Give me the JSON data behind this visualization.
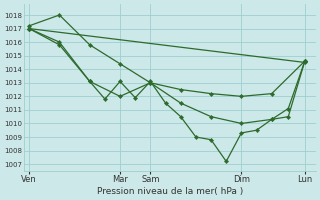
{
  "title": "",
  "xlabel": "Pression niveau de la mer( hPa )",
  "ylabel": "",
  "bg_color": "#cce8e8",
  "line_color": "#2d6b2d",
  "yticks": [
    1007,
    1008,
    1009,
    1010,
    1011,
    1012,
    1013,
    1014,
    1015,
    1016,
    1017,
    1018
  ],
  "ylim": [
    1006.5,
    1018.8
  ],
  "xlim": [
    -0.2,
    10.4
  ],
  "xtick_positions": [
    0,
    3.3,
    4.4,
    7.7,
    10.0
  ],
  "xtick_labels": [
    "Ven",
    "Mar",
    "Sam",
    "Dim",
    "Lun"
  ],
  "vline_positions": [
    0,
    3.3,
    4.4,
    7.7,
    10.0
  ],
  "series": [
    {
      "comment": "Nearly straight top line: 1017 -> gently down to ~1014.5 at end",
      "x": [
        0,
        10.0
      ],
      "y": [
        1017.0,
        1014.5
      ]
    },
    {
      "comment": "Second line: starts ~1017, dips to 1011 around Mar, then down more, recovers to 1014.5",
      "x": [
        0,
        1.1,
        2.2,
        3.3,
        4.4,
        5.5,
        6.6,
        7.7,
        8.8,
        10.0
      ],
      "y": [
        1017.0,
        1015.8,
        1013.1,
        1012.0,
        1013.0,
        1012.5,
        1012.2,
        1012.0,
        1012.2,
        1014.6
      ]
    },
    {
      "comment": "Third line: starts 1017.2/1018, drops steeply, goes to ~1010-1011 by Dim",
      "x": [
        0,
        1.1,
        2.2,
        3.3,
        4.4,
        5.5,
        6.6,
        7.7,
        8.8,
        9.4,
        10.0
      ],
      "y": [
        1017.2,
        1018.0,
        1015.8,
        1014.4,
        1013.0,
        1011.5,
        1010.5,
        1010.0,
        1010.3,
        1010.5,
        1014.6
      ]
    },
    {
      "comment": "Bottom deep line: starts 1017, drops very steeply to 1007 min around Sam/Dim boundary, recovers",
      "x": [
        0,
        1.1,
        2.2,
        2.75,
        3.3,
        3.85,
        4.4,
        4.95,
        5.5,
        6.05,
        6.6,
        7.15,
        7.7,
        8.25,
        8.8,
        9.4,
        10.0
      ],
      "y": [
        1017.0,
        1016.0,
        1013.1,
        1011.8,
        1013.1,
        1011.9,
        1013.1,
        1011.5,
        1010.5,
        1009.0,
        1008.8,
        1007.2,
        1009.3,
        1009.5,
        1010.3,
        1011.1,
        1014.6
      ]
    }
  ]
}
